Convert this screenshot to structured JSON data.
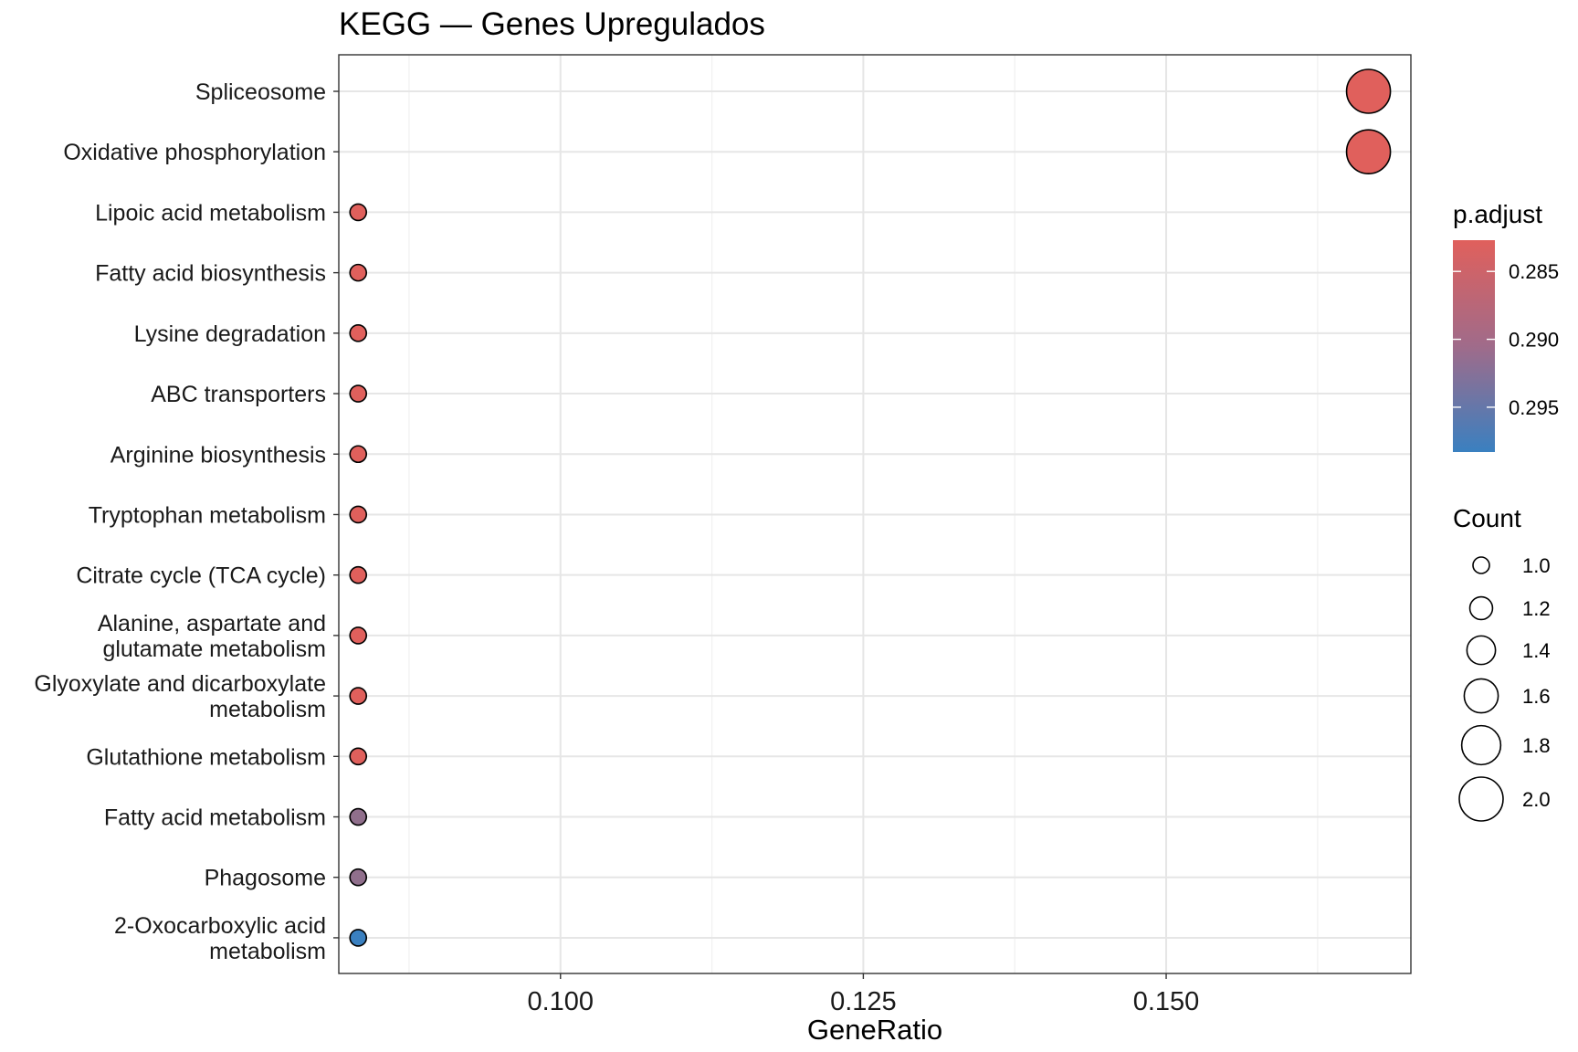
{
  "chart_data": {
    "type": "scatter",
    "title": "KEGG — Genes Upregulados",
    "xlabel": "GeneRatio",
    "ylabel": "",
    "xlim": [
      0.0817,
      0.1702
    ],
    "x_ticks": [
      "0.100",
      "0.125",
      "0.150"
    ],
    "x_tick_values": [
      0.1,
      0.125,
      0.15
    ],
    "grid": true,
    "categories": [
      "Spliceosome",
      "Oxidative phosphorylation",
      "Lipoic acid metabolism",
      "Fatty acid biosynthesis",
      "Lysine degradation",
      "ABC transporters",
      "Arginine biosynthesis",
      "Tryptophan metabolism",
      "Citrate cycle (TCA cycle)",
      "Alanine, aspartate and\nglutamate metabolism",
      "Glyoxylate and dicarboxylate\nmetabolism",
      "Glutathione metabolism",
      "Fatty acid metabolism",
      "Phagosome",
      "2-Oxocarboxylic acid\nmetabolism"
    ],
    "points": [
      {
        "term": "Spliceosome",
        "gene_ratio": 0.1667,
        "count": 2,
        "p_adjust": 0.2827
      },
      {
        "term": "Oxidative phosphorylation",
        "gene_ratio": 0.1667,
        "count": 2,
        "p_adjust": 0.2827
      },
      {
        "term": "Lipoic acid metabolism",
        "gene_ratio": 0.0833,
        "count": 1,
        "p_adjust": 0.2827
      },
      {
        "term": "Fatty acid biosynthesis",
        "gene_ratio": 0.0833,
        "count": 1,
        "p_adjust": 0.2827
      },
      {
        "term": "Lysine degradation",
        "gene_ratio": 0.0833,
        "count": 1,
        "p_adjust": 0.2827
      },
      {
        "term": "ABC transporters",
        "gene_ratio": 0.0833,
        "count": 1,
        "p_adjust": 0.2827
      },
      {
        "term": "Arginine biosynthesis",
        "gene_ratio": 0.0833,
        "count": 1,
        "p_adjust": 0.2827
      },
      {
        "term": "Tryptophan metabolism",
        "gene_ratio": 0.0833,
        "count": 1,
        "p_adjust": 0.2827
      },
      {
        "term": "Citrate cycle (TCA cycle)",
        "gene_ratio": 0.0833,
        "count": 1,
        "p_adjust": 0.2827
      },
      {
        "term": "Alanine, aspartate and glutamate metabolism",
        "gene_ratio": 0.0833,
        "count": 1,
        "p_adjust": 0.2827
      },
      {
        "term": "Glyoxylate and dicarboxylate metabolism",
        "gene_ratio": 0.0833,
        "count": 1,
        "p_adjust": 0.2827
      },
      {
        "term": "Glutathione metabolism",
        "gene_ratio": 0.0833,
        "count": 1,
        "p_adjust": 0.2827
      },
      {
        "term": "Fatty acid metabolism",
        "gene_ratio": 0.0833,
        "count": 1,
        "p_adjust": 0.2902
      },
      {
        "term": "Phagosome",
        "gene_ratio": 0.0833,
        "count": 1,
        "p_adjust": 0.2902
      },
      {
        "term": "2-Oxocarboxylic acid metabolism",
        "gene_ratio": 0.0833,
        "count": 1,
        "p_adjust": 0.2983
      }
    ],
    "color_legend": {
      "title": "p.adjust",
      "range": [
        0.2827,
        0.2983
      ],
      "ticks": [
        0.285,
        0.29,
        0.295
      ],
      "tick_labels": [
        "0.285",
        "0.290",
        "0.295"
      ],
      "low_color": "#E0605C",
      "high_color": "#3A80C0",
      "placement": "right"
    },
    "size_legend": {
      "title": "Count",
      "values": [
        1.0,
        1.2,
        1.4,
        1.6,
        1.8,
        2.0
      ],
      "labels": [
        "1.0",
        "1.2",
        "1.4",
        "1.6",
        "1.8",
        "2.0"
      ],
      "placement": "right"
    }
  }
}
